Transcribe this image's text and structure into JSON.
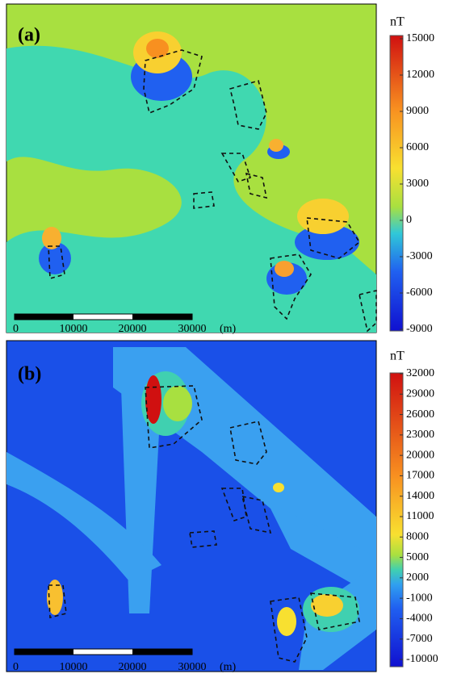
{
  "panels": [
    {
      "label": "(a)",
      "unit": "nT",
      "colorbar_ticks": [
        15000,
        12000,
        9000,
        6000,
        3000,
        0,
        -3000,
        -6000,
        -9000
      ],
      "scale_labels": [
        "0",
        "10000",
        "20000",
        "30000",
        "(m)"
      ]
    },
    {
      "label": "(b)",
      "unit": "nT",
      "colorbar_ticks": [
        32000,
        29000,
        26000,
        23000,
        20000,
        17000,
        14000,
        11000,
        8000,
        5000,
        2000,
        -1000,
        -4000,
        -7000,
        -10000
      ],
      "scale_labels": [
        "0",
        "10000",
        "20000",
        "30000",
        "(m)"
      ]
    }
  ]
}
